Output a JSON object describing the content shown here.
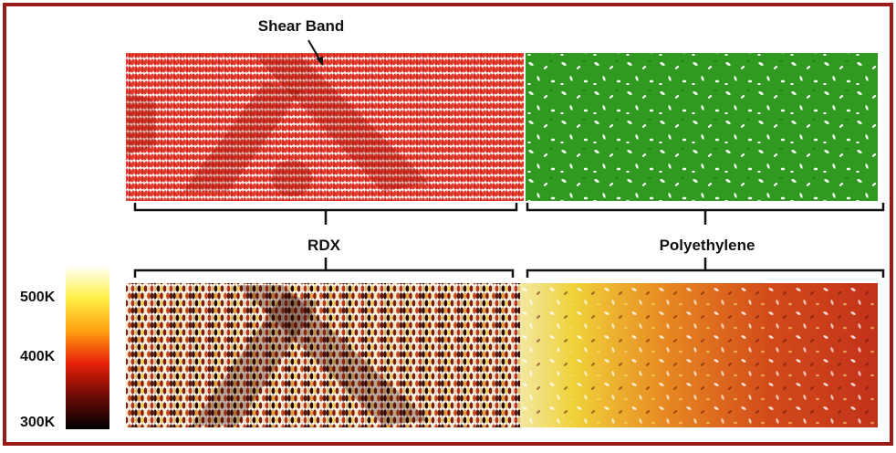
{
  "annotation": "Shear Band",
  "labels": {
    "left": "RDX",
    "right": "Polyethylene"
  },
  "colorbar": {
    "ticks": [
      "500K",
      "400K",
      "300K"
    ]
  }
}
